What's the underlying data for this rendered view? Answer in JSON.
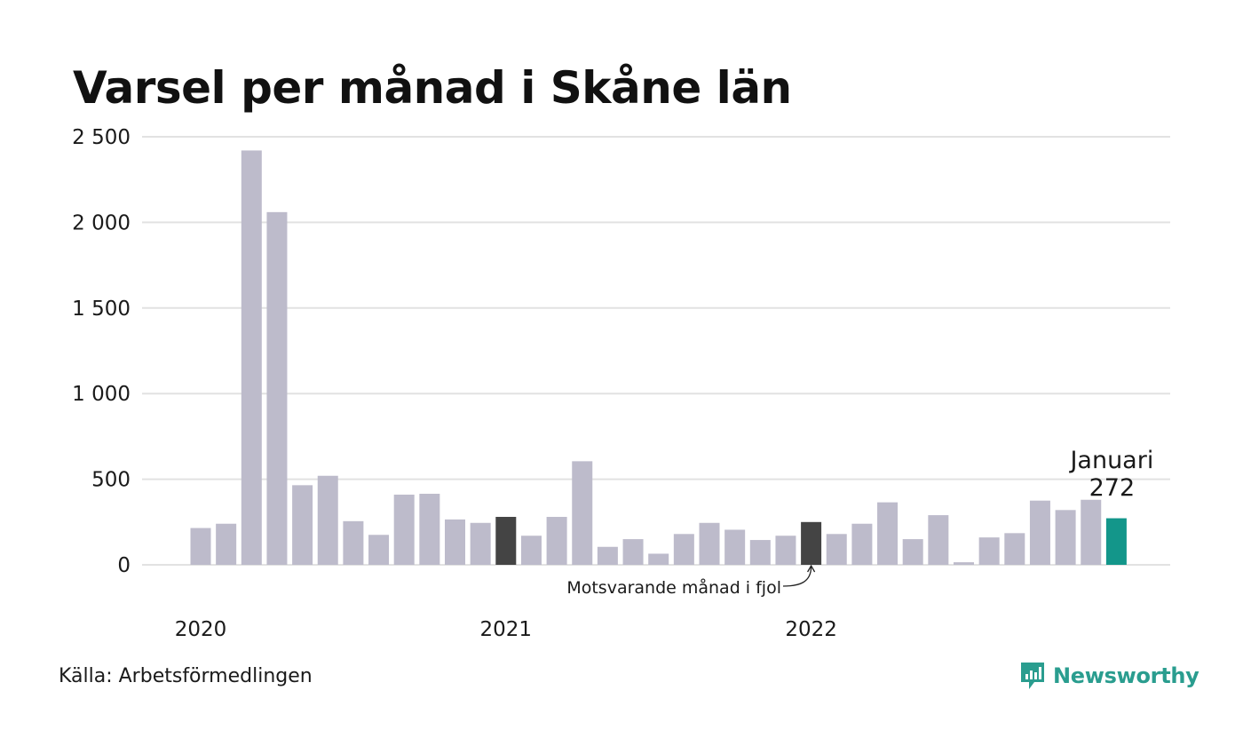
{
  "title": "Varsel per månad i Skåne län",
  "source": "Källa: Arbetsförmedlingen",
  "brand": "Newsworthy",
  "colors": {
    "regular": "#bdbbcb",
    "same_month_prev": "#444444",
    "current": "#13968a",
    "grid": "#e2e2e2",
    "brand": "#2a9d8f"
  },
  "annotation": "Motsvarande månad i fjol",
  "callout": {
    "label": "Januari",
    "value": "272"
  },
  "chart_data": {
    "type": "bar",
    "title": "Varsel per månad i Skåne län",
    "xlabel": "",
    "ylabel": "",
    "ylim": [
      0,
      2500
    ],
    "yticks": [
      {
        "value": 0,
        "label": "0"
      },
      {
        "value": 500,
        "label": "500"
      },
      {
        "value": 1000,
        "label": "1 000"
      },
      {
        "value": 1500,
        "label": "1 500"
      },
      {
        "value": 2000,
        "label": "2 000"
      },
      {
        "value": 2500,
        "label": "2 500"
      }
    ],
    "xticks": [
      {
        "index": 0,
        "label": "2020"
      },
      {
        "index": 12,
        "label": "2021"
      },
      {
        "index": 24,
        "label": "2022"
      }
    ],
    "categories": [
      "2020-01",
      "2020-02",
      "2020-03",
      "2020-04",
      "2020-05",
      "2020-06",
      "2020-07",
      "2020-08",
      "2020-09",
      "2020-10",
      "2020-11",
      "2020-12",
      "2021-01",
      "2021-02",
      "2021-03",
      "2021-04",
      "2021-05",
      "2021-06",
      "2021-07",
      "2021-08",
      "2021-09",
      "2021-10",
      "2021-11",
      "2021-12",
      "2022-01",
      "2022-02",
      "2022-03",
      "2022-04",
      "2022-05",
      "2022-06",
      "2022-07",
      "2022-08",
      "2022-09",
      "2022-10",
      "2022-11",
      "2022-12",
      "2023-01"
    ],
    "values": [
      215,
      240,
      2420,
      2060,
      465,
      520,
      255,
      175,
      410,
      415,
      265,
      245,
      280,
      170,
      280,
      605,
      105,
      150,
      65,
      180,
      245,
      205,
      145,
      170,
      250,
      180,
      240,
      365,
      150,
      290,
      15,
      160,
      185,
      375,
      320,
      380,
      272
    ],
    "highlight": {
      "previous_year_same_month": [
        12,
        24
      ],
      "current": 36
    },
    "grid": true,
    "legend": "none"
  }
}
